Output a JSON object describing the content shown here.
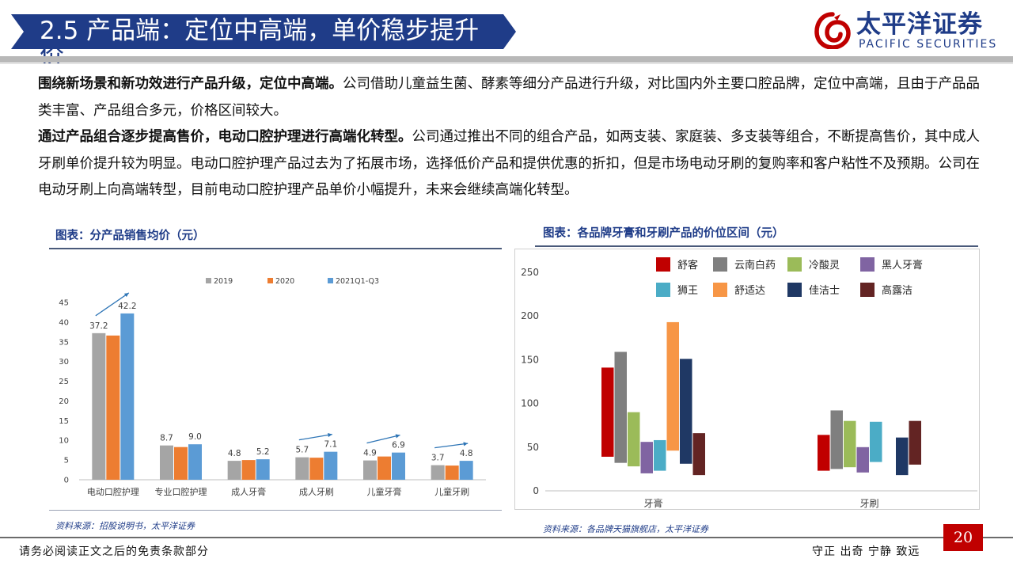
{
  "header": {
    "title": "2.5 产品端：定位中高端，单价稳步提升",
    "title_overflow": "价",
    "banner_color": "#1f3c88",
    "logo_cn": "太平洋证券",
    "logo_en": "PACIFIC SECURITIES",
    "logo_icon": "pacific-securities-logo-icon"
  },
  "body": {
    "p1_bold": "围绕新场景和新功效进行产品升级，定位中高端。",
    "p1_text": "公司借助儿童益生菌、酵素等细分产品进行升级，对比国内外主要口腔品牌，定位中高端，且由于产品品类丰富、产品组合多元，价格区间较大。",
    "p2_bold": "通过产品组合逐步提高售价，电动口腔护理进行高端化转型。",
    "p2_text": "公司通过推出不同的组合产品，如两支装、家庭装、多支装等组合，不断提高售价，其中成人牙刷单价提升较为明显。电动口腔护理产品过去为了拓展市场，选择低价产品和提供优惠的折扣，但是市场电动牙刷的复购率和客户粘性不及预期。公司在电动牙刷上向高端转型，目前电动口腔护理产品单价小幅提升，未来会继续高端化转型。"
  },
  "chart1_title": "图表：分产品销售均价（元）",
  "chart1_source": "资料来源：招股说明书，太平洋证券",
  "chart2_title": "图表：各品牌牙膏和牙刷产品的价位区间（元）",
  "chart2_source": "资料来源：各品牌天猫旗舰店，太平洋证券",
  "chart_data": [
    {
      "type": "bar",
      "categories": [
        "电动口腔护理",
        "专业口腔护理",
        "成人牙膏",
        "成人牙刷",
        "儿童牙膏",
        "儿童牙刷"
      ],
      "series": [
        {
          "name": "2019",
          "color": "#a5a5a5",
          "values": [
            37.2,
            8.7,
            4.8,
            5.7,
            4.9,
            3.7
          ]
        },
        {
          "name": "2020",
          "color": "#ed7d31",
          "values": [
            36.6,
            8.3,
            5.0,
            5.6,
            5.9,
            3.6
          ]
        },
        {
          "name": "2021Q1-Q3",
          "color": "#5b9bd5",
          "values": [
            42.2,
            9.0,
            5.2,
            7.1,
            6.9,
            4.8
          ]
        }
      ],
      "data_labels": [
        [
          "37.2",
          "",
          "42.2"
        ],
        [
          "8.7",
          "",
          "9.0"
        ],
        [
          "4.8",
          "",
          "5.2"
        ],
        [
          "5.7",
          "",
          "7.1"
        ],
        [
          "4.9",
          "",
          "6.9"
        ],
        [
          "3.7",
          "",
          "4.8"
        ]
      ],
      "ylim": [
        0,
        45
      ],
      "yticks": [
        0,
        5,
        10,
        15,
        20,
        25,
        30,
        35,
        40,
        45
      ],
      "legend_position": "top",
      "grid": false
    },
    {
      "type": "bar",
      "subtype": "floating-range",
      "categories": [
        "牙膏",
        "牙刷"
      ],
      "series": [
        {
          "name": "舒客",
          "color": "#c00000",
          "ranges": [
            [
              39,
              141
            ],
            [
              23,
              64
            ]
          ]
        },
        {
          "name": "云南白药",
          "color": "#7f7f7f",
          "ranges": [
            [
              32,
              159
            ],
            [
              25,
              92
            ]
          ]
        },
        {
          "name": "冷酸灵",
          "color": "#9bbb59",
          "ranges": [
            [
              28,
              90
            ],
            [
              27,
              80
            ]
          ]
        },
        {
          "name": "黑人牙膏",
          "color": "#8064a2",
          "ranges": [
            [
              20,
              56
            ],
            [
              21,
              50
            ]
          ]
        },
        {
          "name": "狮王",
          "color": "#4bacc6",
          "ranges": [
            [
              23,
              58
            ],
            [
              33,
              79
            ]
          ]
        },
        {
          "name": "舒适达",
          "color": "#f79646",
          "ranges": [
            [
              46,
              193
            ],
            null
          ]
        },
        {
          "name": "佳洁士",
          "color": "#1f3864",
          "ranges": [
            [
              31,
              151
            ],
            [
              18,
              61
            ]
          ]
        },
        {
          "name": "高露洁",
          "color": "#632423",
          "ranges": [
            [
              18,
              66
            ],
            [
              30,
              80
            ]
          ]
        }
      ],
      "ylim": [
        0,
        250
      ],
      "yticks": [
        0,
        50,
        100,
        150,
        200,
        250
      ],
      "legend_position": "top",
      "grid": false
    }
  ],
  "footer": {
    "left": "请务必阅读正文之后的免责条款部分",
    "right": "守正  出奇  宁静  致远",
    "page_number": "20"
  }
}
